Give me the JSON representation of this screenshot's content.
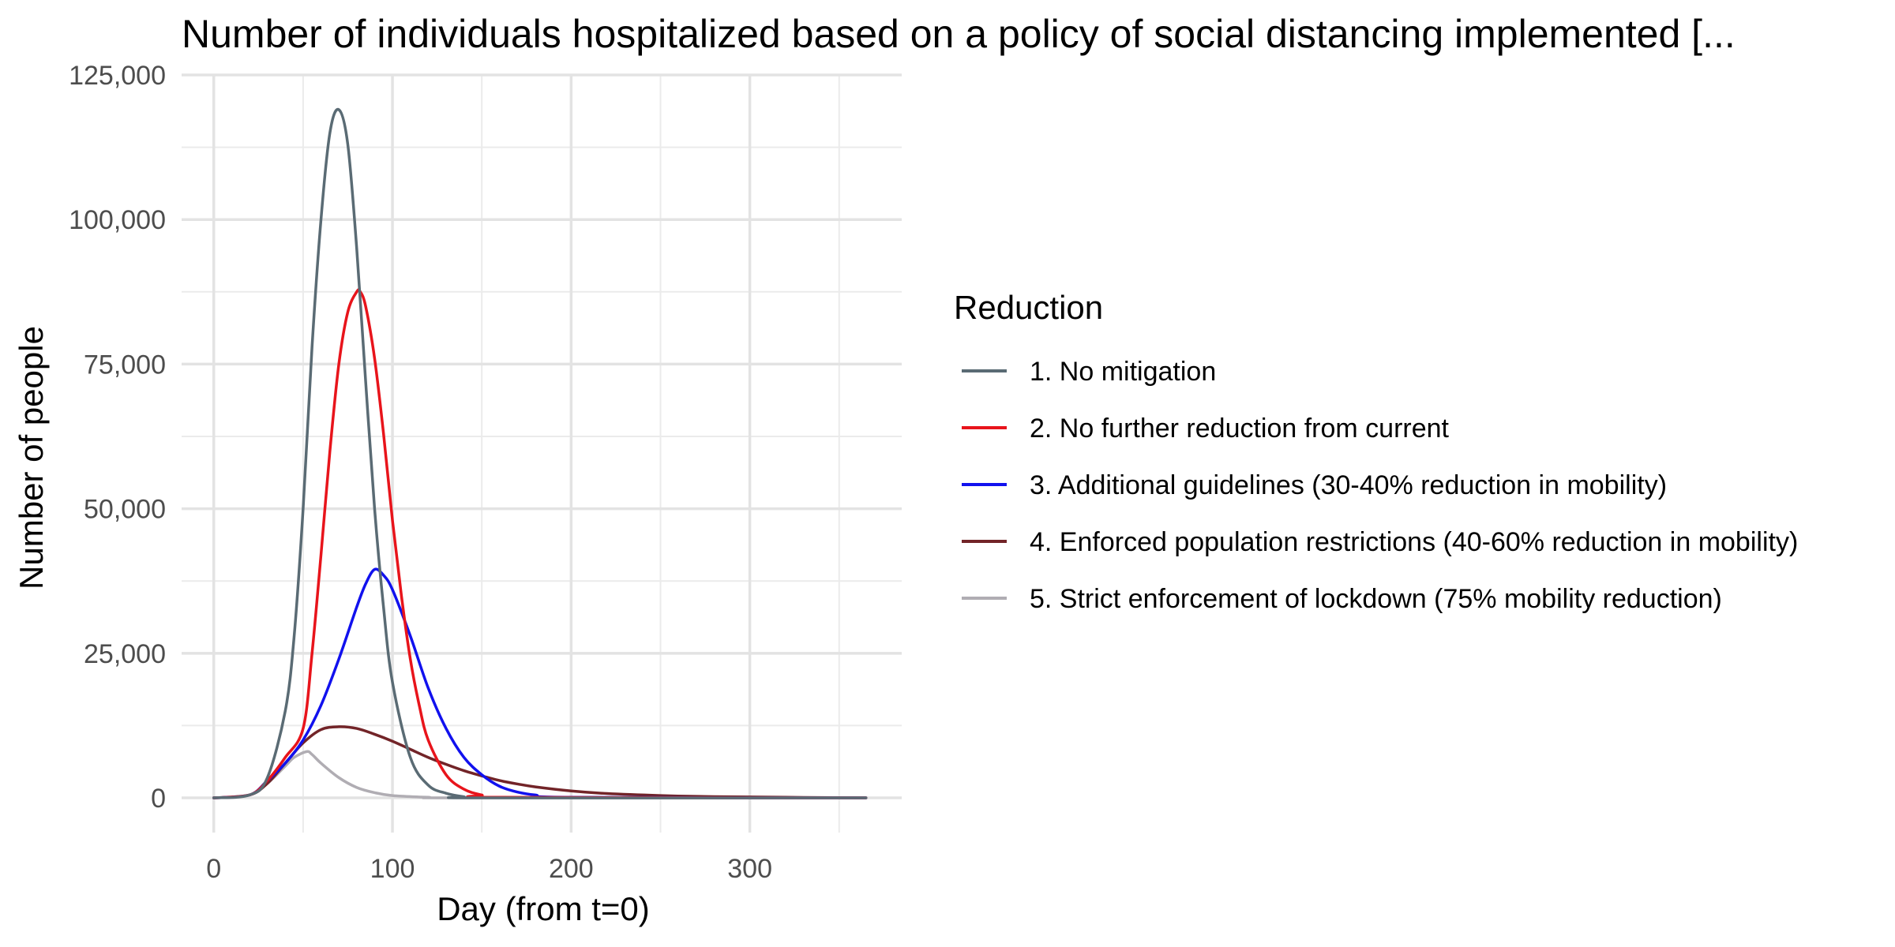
{
  "chart_data": {
    "type": "line",
    "title": "Number of individuals hospitalized based on a policy of social distancing implemented [...",
    "xlabel": "Day (from t=0)",
    "ylabel": "Number of people",
    "xlim": [
      -18,
      385
    ],
    "ylim": [
      -6000,
      125000
    ],
    "x_ticks": [
      0,
      100,
      200,
      300
    ],
    "y_ticks": [
      0,
      25000,
      50000,
      75000,
      100000,
      125000
    ],
    "x_tick_labels": [
      "0",
      "100",
      "200",
      "300"
    ],
    "y_tick_labels": [
      "0",
      "25,000",
      "50,000",
      "75,000",
      "100,000",
      "125,000"
    ],
    "grid": true,
    "legend": {
      "title": "Reduction",
      "position": "right"
    },
    "series": [
      {
        "name": "1. No mitigation",
        "color": "#5a6b74",
        "points": [
          [
            0,
            0
          ],
          [
            20,
            500
          ],
          [
            30,
            3500
          ],
          [
            40,
            15000
          ],
          [
            45,
            28000
          ],
          [
            50,
            50000
          ],
          [
            55,
            78000
          ],
          [
            60,
            100000
          ],
          [
            65,
            115000
          ],
          [
            70,
            119000
          ],
          [
            75,
            113000
          ],
          [
            80,
            95000
          ],
          [
            85,
            72000
          ],
          [
            90,
            50000
          ],
          [
            95,
            33000
          ],
          [
            100,
            20000
          ],
          [
            110,
            7000
          ],
          [
            120,
            2200
          ],
          [
            130,
            800
          ],
          [
            140,
            200
          ],
          [
            150,
            0
          ],
          [
            365,
            0
          ]
        ]
      },
      {
        "name": "2. No further reduction from current",
        "color": "#e8141b",
        "points": [
          [
            0,
            0
          ],
          [
            20,
            500
          ],
          [
            30,
            3000
          ],
          [
            40,
            7000
          ],
          [
            50,
            12000
          ],
          [
            55,
            25000
          ],
          [
            60,
            42000
          ],
          [
            65,
            60000
          ],
          [
            70,
            75000
          ],
          [
            75,
            84000
          ],
          [
            80,
            87500
          ],
          [
            82,
            87500
          ],
          [
            85,
            85000
          ],
          [
            90,
            76000
          ],
          [
            95,
            63000
          ],
          [
            100,
            48000
          ],
          [
            105,
            35000
          ],
          [
            110,
            24000
          ],
          [
            115,
            16000
          ],
          [
            120,
            10000
          ],
          [
            130,
            4000
          ],
          [
            140,
            1500
          ],
          [
            150,
            500
          ],
          [
            160,
            100
          ],
          [
            365,
            0
          ]
        ]
      },
      {
        "name": "3. Additional guidelines (30-40% reduction in mobility)",
        "color": "#1111ee",
        "points": [
          [
            0,
            0
          ],
          [
            20,
            500
          ],
          [
            30,
            3000
          ],
          [
            40,
            6000
          ],
          [
            50,
            10000
          ],
          [
            60,
            16000
          ],
          [
            70,
            24000
          ],
          [
            80,
            33000
          ],
          [
            85,
            37000
          ],
          [
            90,
            39500
          ],
          [
            95,
            38500
          ],
          [
            100,
            36000
          ],
          [
            110,
            28000
          ],
          [
            120,
            19000
          ],
          [
            130,
            12000
          ],
          [
            140,
            7000
          ],
          [
            150,
            4000
          ],
          [
            160,
            2000
          ],
          [
            170,
            1000
          ],
          [
            180,
            500
          ],
          [
            200,
            100
          ],
          [
            365,
            0
          ]
        ]
      },
      {
        "name": "4. Enforced population restrictions (40-60% reduction in mobility)",
        "color": "#722428",
        "points": [
          [
            0,
            0
          ],
          [
            20,
            500
          ],
          [
            30,
            2500
          ],
          [
            40,
            6000
          ],
          [
            50,
            9500
          ],
          [
            60,
            11800
          ],
          [
            70,
            12300
          ],
          [
            80,
            12000
          ],
          [
            90,
            11000
          ],
          [
            100,
            9800
          ],
          [
            110,
            8400
          ],
          [
            120,
            7000
          ],
          [
            130,
            5800
          ],
          [
            140,
            4700
          ],
          [
            150,
            3800
          ],
          [
            160,
            3000
          ],
          [
            170,
            2400
          ],
          [
            180,
            1900
          ],
          [
            200,
            1200
          ],
          [
            220,
            750
          ],
          [
            250,
            400
          ],
          [
            280,
            200
          ],
          [
            320,
            100
          ],
          [
            365,
            0
          ]
        ]
      },
      {
        "name": "5. Strict enforcement of lockdown (75% mobility reduction)",
        "color": "#b0adb3",
        "points": [
          [
            0,
            0
          ],
          [
            20,
            500
          ],
          [
            30,
            2500
          ],
          [
            40,
            5500
          ],
          [
            45,
            7000
          ],
          [
            52,
            8000
          ],
          [
            55,
            7500
          ],
          [
            60,
            6000
          ],
          [
            70,
            3500
          ],
          [
            80,
            1800
          ],
          [
            90,
            900
          ],
          [
            100,
            400
          ],
          [
            120,
            100
          ],
          [
            140,
            0
          ],
          [
            365,
            0
          ]
        ]
      }
    ]
  }
}
